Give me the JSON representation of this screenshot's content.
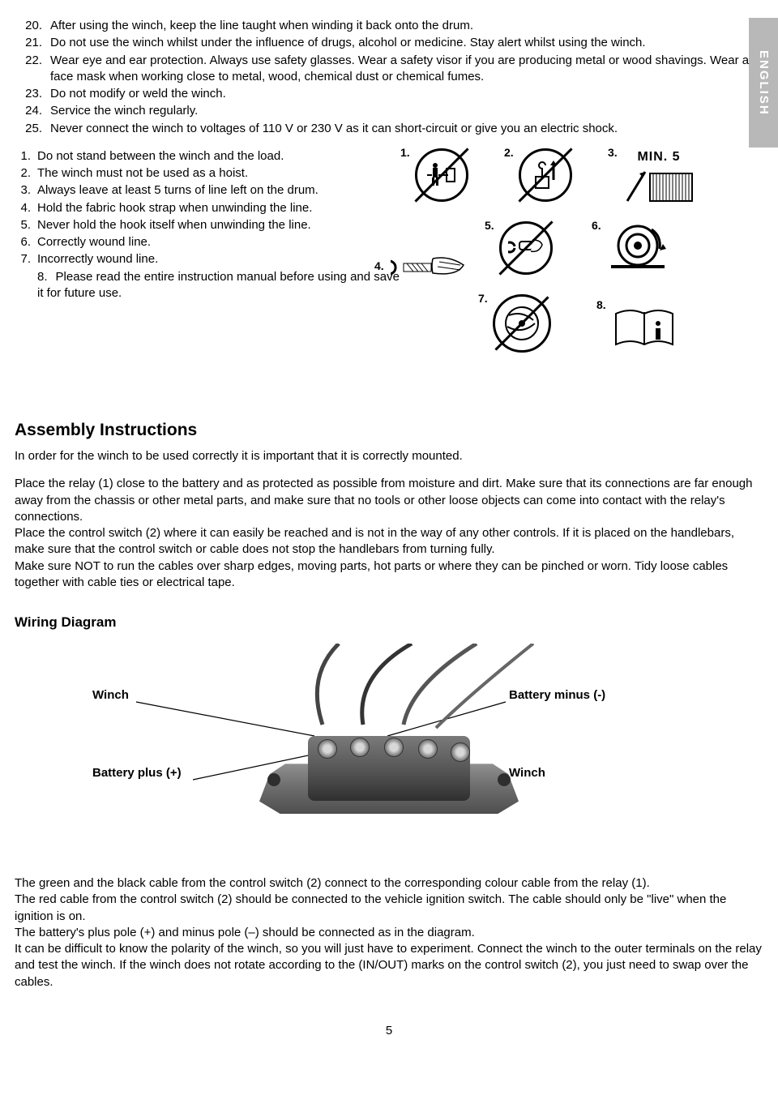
{
  "langTab": "ENGLISH",
  "olCont": [
    {
      "n": "20.",
      "t": "After using the winch, keep the line taught when winding it back onto the drum."
    },
    {
      "n": "21.",
      "t": "Do not use the winch whilst under the influence of drugs, alcohol or medicine. Stay alert whilst using the winch."
    },
    {
      "n": "22.",
      "t": "Wear eye and ear protection. Always use safety glasses. Wear a safety visor if you are producing metal or wood shavings. Wear a face mask when working close to metal, wood, chemical dust or chemical fumes."
    },
    {
      "n": "23.",
      "t": "Do not modify or weld the winch."
    },
    {
      "n": "24.",
      "t": "Service the winch regularly."
    },
    {
      "n": "25.",
      "t": "Never connect the winch to voltages of 110 V or 230 V as it can short-circuit or give you an electric shock."
    }
  ],
  "olSmall": [
    {
      "n": "1.",
      "t": "Do not stand between the winch and the load."
    },
    {
      "n": "2.",
      "t": "The winch must not be used as a hoist."
    },
    {
      "n": "3.",
      "t": "Always leave at least 5 turns of line left on the drum."
    },
    {
      "n": "4.",
      "t": "Hold the fabric hook strap when unwinding the line."
    },
    {
      "n": "5.",
      "t": "Never hold the hook itself when unwinding the line."
    },
    {
      "n": "6.",
      "t": "Correctly wound line."
    },
    {
      "n": "7.",
      "t": "Incorrectly wound line."
    },
    {
      "n": "8.",
      "t": "Please read the entire instruction manual before using and save it for future use."
    }
  ],
  "iconLabels": {
    "i1": "1.",
    "i2": "2.",
    "i3": "3.",
    "i4": "4.",
    "i5": "5.",
    "i6": "6.",
    "i7": "7.",
    "i8": "8.",
    "min5": "MIN. 5"
  },
  "assembly": {
    "heading": "Assembly Instructions",
    "p1": "In order for the winch to be used correctly it is important that it is correctly mounted.",
    "p2": "Place the relay (1) close to the battery and as protected as possible from moisture and dirt. Make sure that its connections are far enough away from the chassis or other metal parts, and make sure that no tools or other loose objects can come into contact with the relay's connections.",
    "p3": "Place the control switch (2) where it can easily be reached and is not in the way of any other controls. If it is placed on the handlebars, make sure that the control switch or cable does not stop the handlebars from turning fully.",
    "p4": "Make sure NOT to run the cables over sharp edges, moving parts, hot parts or where they can be pinched or worn. Tidy loose cables together with cable ties or electrical tape."
  },
  "wiring": {
    "heading": "Wiring Diagram",
    "winch": "Winch",
    "battPlus": "Battery plus (+)",
    "battMinus": "Battery minus (-)",
    "winch2": "Winch"
  },
  "bottom": {
    "p1": "The green and the black cable from the control switch (2) connect to the corresponding colour cable from the relay (1).",
    "p2": "The red cable from the control switch (2) should be connected to the vehicle ignition switch. The cable should only be \"live\" when the ignition is on.",
    "p3": "The battery's plus pole (+) and minus pole (–) should be connected as in the diagram.",
    "p4": "It can be difficult to know the polarity of the winch, so you will just have to experiment. Connect the winch to the outer terminals on the relay and test the winch. If the winch does not rotate according to the (IN/OUT) marks on the control switch (2), you just need to swap over the cables."
  },
  "pageNum": "5"
}
